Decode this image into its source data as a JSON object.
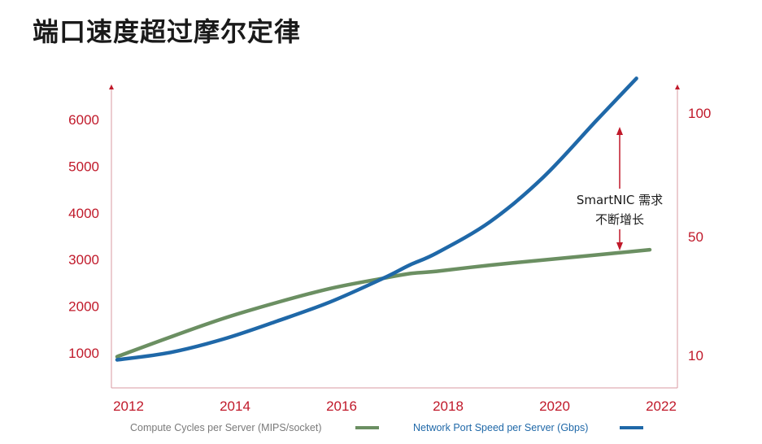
{
  "page": {
    "title": "端口速度超过摩尔定律"
  },
  "colors": {
    "axis": "#c0192a",
    "axis_line": "#d99aa0",
    "compute": "#6b8f62",
    "network": "#1f68a8",
    "legend_compute_text": "#7a7a7a",
    "legend_network_text": "#1f68a8"
  },
  "chart_data": {
    "type": "line",
    "title": "端口速度超过摩尔定律",
    "xlabel": "",
    "x_ticks": [
      "2012",
      "2014",
      "2016",
      "2018",
      "2020",
      "2022"
    ],
    "xlim": [
      2011.9,
      2022.3
    ],
    "left_axis": {
      "ticks": [
        "1000",
        "2000",
        "3000",
        "4000",
        "5000",
        "6000"
      ],
      "tick_values": [
        1000,
        2000,
        3000,
        4000,
        5000,
        6000
      ],
      "ylim": [
        0,
        6600
      ]
    },
    "right_axis": {
      "ticks": [
        "10",
        "50",
        "100"
      ],
      "tick_values": [
        10,
        50,
        100
      ]
    },
    "series": [
      {
        "name": "Compute Cycles per Server (MIPS/socket)",
        "axis": "left",
        "x": [
          2012.0,
          2013.0,
          2014.0,
          2015.0,
          2016.0,
          2017.0,
          2017.5,
          2018.0,
          2019.0,
          2020.0,
          2021.0,
          2022.0
        ],
        "y": [
          920,
          1340,
          1740,
          2080,
          2380,
          2600,
          2700,
          2750,
          2880,
          2990,
          3100,
          3210
        ]
      },
      {
        "name": "Network Port Speed per Server (Gbps)",
        "axis": "right",
        "x": [
          2012.0,
          2013.0,
          2014.0,
          2015.0,
          2016.0,
          2017.0,
          2017.5,
          2018.0,
          2019.0,
          2020.0,
          2021.0,
          2021.75
        ],
        "y": [
          8.5,
          11,
          15.5,
          21.5,
          28,
          36,
          40.5,
          44.5,
          56,
          74,
          97,
          114
        ]
      }
    ],
    "annotation": {
      "line1": "SmartNIC 需求",
      "line2": "不断增长"
    },
    "legend": [
      {
        "label": "Compute Cycles per Server (MIPS/socket)",
        "series": 0
      },
      {
        "label": "Network Port Speed per Server (Gbps)",
        "series": 1
      }
    ]
  }
}
